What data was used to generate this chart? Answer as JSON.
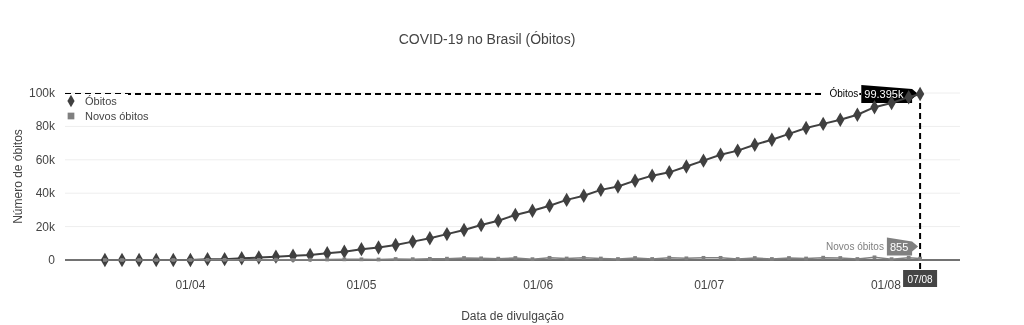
{
  "chart_data": {
    "type": "line",
    "title": "COVID-19 no Brasil (Óbitos)",
    "xlabel": "Data de divulgação",
    "ylabel": "Número de óbitos",
    "x": [
      "--03-17",
      "--03-20",
      "--03-23",
      "--03-26",
      "--03-29",
      "--04-01",
      "--04-04",
      "--04-07",
      "--04-10",
      "--04-13",
      "--04-16",
      "--04-19",
      "--04-22",
      "--04-25",
      "--04-28",
      "--05-01",
      "--05-04",
      "--05-07",
      "--05-10",
      "--05-13",
      "--05-16",
      "--05-19",
      "--05-22",
      "--05-25",
      "--05-28",
      "--05-31",
      "--06-03",
      "--06-06",
      "--06-09",
      "--06-12",
      "--06-15",
      "--06-18",
      "--06-21",
      "--06-24",
      "--06-27",
      "--06-30",
      "--07-03",
      "--07-06",
      "--07-09",
      "--07-12",
      "--07-15",
      "--07-18",
      "--07-21",
      "--07-24",
      "--07-27",
      "--07-30",
      "--08-02",
      "--08-05",
      "--08-07"
    ],
    "series": [
      {
        "name": "Óbitos",
        "color": "#404040",
        "marker": "diamond",
        "values": [
          0,
          0,
          0,
          0,
          0,
          0,
          500,
          500,
          1000,
          1500,
          2000,
          2500,
          3000,
          4000,
          5000,
          6500,
          7500,
          9000,
          11000,
          13000,
          15500,
          18000,
          21000,
          23500,
          27000,
          29500,
          32500,
          36000,
          38500,
          42000,
          44000,
          47500,
          50500,
          52500,
          56000,
          59500,
          63000,
          65500,
          69000,
          72000,
          75500,
          79000,
          81500,
          84000,
          87000,
          91500,
          94000,
          97500,
          99395
        ]
      },
      {
        "name": "Novos óbitos",
        "color": "#808080",
        "marker": "square",
        "values": [
          0,
          0,
          0,
          0,
          0,
          0,
          100,
          100,
          100,
          100,
          200,
          100,
          200,
          300,
          400,
          400,
          300,
          600,
          500,
          700,
          800,
          1200,
          1000,
          800,
          1200,
          500,
          1300,
          900,
          1300,
          900,
          600,
          1200,
          600,
          1400,
          1000,
          1300,
          1300,
          600,
          1200,
          600,
          1200,
          900,
          1400,
          1200,
          600,
          1600,
          500,
          1400,
          855
        ]
      }
    ],
    "xlim": [
      "--03-10",
      "--08-14"
    ],
    "xticks": [
      {
        "value": "--04-01",
        "label": "01/04"
      },
      {
        "value": "--05-01",
        "label": "01/05"
      },
      {
        "value": "--06-01",
        "label": "01/06"
      },
      {
        "value": "--07-01",
        "label": "01/07"
      },
      {
        "value": "--08-01",
        "label": "01/08"
      }
    ],
    "ylim": [
      0,
      100000
    ],
    "yticks": [
      0,
      {
        "value": 20000,
        "label": "20k"
      },
      {
        "value": 40000,
        "label": "40k"
      },
      {
        "value": 60000,
        "label": "60k"
      },
      {
        "value": 80000,
        "label": "80k"
      },
      {
        "value": 100000,
        "label": "100k"
      }
    ],
    "grid": "y",
    "legend": "top left",
    "ref_lines": [
      {
        "axis": "x",
        "value": "--08-07",
        "label": "07/08",
        "line_style": "dashed",
        "color": "#000000"
      },
      {
        "axis": "y",
        "value": 99395,
        "line_style": "dashed",
        "color": "#000000"
      }
    ],
    "annotations": [
      {
        "text": "99.395k",
        "x": "--08-07",
        "y": 99395
      },
      {
        "text": "855",
        "x": "--08-07",
        "y": 855
      }
    ]
  }
}
